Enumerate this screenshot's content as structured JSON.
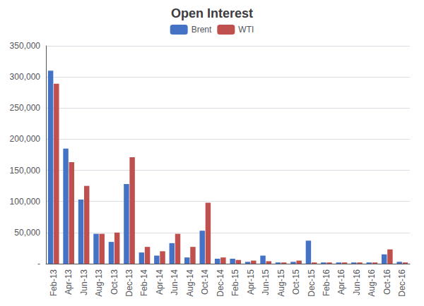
{
  "chart_data": {
    "type": "bar",
    "title": "Open Interest",
    "categories": [
      "Feb-13",
      "Apr-13",
      "Jun-13",
      "Aug-13",
      "Oct-13",
      "Dec-13",
      "Feb-14",
      "Apr-14",
      "Jun-14",
      "Aug-14",
      "Oct-14",
      "Dec-14",
      "Feb-15",
      "Apr-15",
      "Jun-15",
      "Aug-15",
      "Oct-15",
      "Dec-15",
      "Feb-16",
      "Apr-16",
      "Jun-16",
      "Aug-16",
      "Oct-16",
      "Dec-16"
    ],
    "series": [
      {
        "name": "Brent",
        "color": "#4472C4",
        "values": [
          310000,
          185000,
          103000,
          48000,
          35000,
          128000,
          18000,
          13000,
          33000,
          10000,
          53000,
          8000,
          8000,
          3000,
          13000,
          2000,
          3000,
          37000,
          2000,
          2000,
          2000,
          2000,
          15000,
          3000
        ]
      },
      {
        "name": "WTI",
        "color": "#C0504D",
        "values": [
          289000,
          163000,
          125000,
          48000,
          50000,
          171000,
          27000,
          20000,
          48000,
          27000,
          98000,
          10000,
          6000,
          5000,
          4000,
          2000,
          5000,
          2000,
          2000,
          2000,
          2000,
          2000,
          23000,
          2000
        ]
      }
    ],
    "ylim": [
      0,
      350000
    ],
    "yticks": [
      {
        "value": 0,
        "label": "-"
      },
      {
        "value": 50000,
        "label": "50,000"
      },
      {
        "value": 100000,
        "label": "100,000"
      },
      {
        "value": 150000,
        "label": "150,000"
      },
      {
        "value": 200000,
        "label": "200,000"
      },
      {
        "value": 250000,
        "label": "250,000"
      },
      {
        "value": 300000,
        "label": "300,000"
      },
      {
        "value": 350000,
        "label": "350,000"
      }
    ],
    "grid": true,
    "legend": "top"
  }
}
